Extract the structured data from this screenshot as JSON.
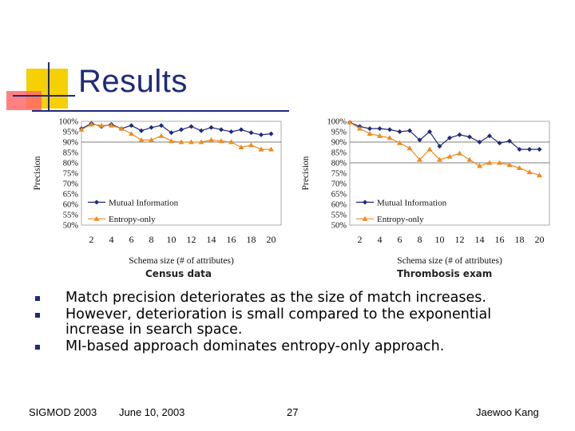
{
  "slide": {
    "title": "Results",
    "bullets": [
      "Match precision deteriorates as the size of match increases.",
      "However, deterioration is small compared to the exponential increase in search space.",
      "MI-based approach dominates entropy-only approach."
    ],
    "footer": {
      "left": "SIGMOD 2003",
      "date": "June 10, 2003",
      "page": "27",
      "author": "Jaewoo Kang"
    }
  },
  "colors": {
    "title": "#1f2a7a",
    "mutual": "#1f2a7a",
    "entropy": "#f08a1c",
    "deco_yellow": "#f6d000",
    "deco_red": "#e84040"
  },
  "chart_data": [
    {
      "type": "line",
      "caption": "Census data",
      "xlabel": "Schema size (# of attributes)",
      "ylabel": "Precision",
      "x_ticks": [
        2,
        4,
        6,
        8,
        10,
        12,
        14,
        16,
        18,
        20
      ],
      "y_ticks": [
        "100%",
        "95%",
        "90%",
        "85%",
        "80%",
        "75%",
        "70%",
        "65%",
        "60%",
        "55%",
        "50%"
      ],
      "xlim": [
        1,
        21
      ],
      "ylim": [
        50,
        100
      ],
      "legend_position": "bottom-left",
      "x": [
        1,
        2,
        3,
        4,
        5,
        6,
        7,
        8,
        9,
        10,
        11,
        12,
        13,
        14,
        15,
        16,
        17,
        18,
        19,
        20
      ],
      "series": [
        {
          "name": "Mutual Information",
          "marker": "diamond",
          "values": [
            96.5,
            99,
            97.5,
            98.5,
            96.5,
            98,
            95.5,
            97,
            98,
            94.5,
            96,
            97.5,
            95.5,
            97,
            96,
            95,
            96,
            94.5,
            93.5,
            94
          ]
        },
        {
          "name": "Entropy-only",
          "marker": "triangle",
          "values": [
            96,
            98.5,
            98,
            98,
            96.5,
            94,
            91,
            91,
            93,
            90.5,
            90,
            90,
            90,
            91,
            90.5,
            90,
            87.5,
            88.5,
            86.5,
            86.5
          ]
        }
      ]
    },
    {
      "type": "line",
      "caption": "Thrombosis exam",
      "xlabel": "Schema size (# of attributes)",
      "ylabel": "Precision",
      "x_ticks": [
        2,
        4,
        6,
        8,
        10,
        12,
        14,
        16,
        18,
        20
      ],
      "y_ticks": [
        "100%",
        "95%",
        "90%",
        "85%",
        "80%",
        "75%",
        "70%",
        "65%",
        "60%",
        "55%",
        "50%"
      ],
      "xlim": [
        1,
        21
      ],
      "ylim": [
        50,
        100
      ],
      "legend_position": "bottom-left",
      "x": [
        1,
        2,
        3,
        4,
        5,
        6,
        7,
        8,
        9,
        10,
        11,
        12,
        13,
        14,
        15,
        16,
        17,
        18,
        19,
        20
      ],
      "series": [
        {
          "name": "Mutual Information",
          "marker": "diamond",
          "values": [
            99.5,
            97.5,
            96.5,
            96.5,
            96,
            95,
            95.5,
            91,
            95,
            88,
            92,
            93.5,
            92.5,
            90,
            93,
            89.5,
            90.5,
            86.5,
            86.5,
            86.5
          ]
        },
        {
          "name": "Entropy-only",
          "marker": "triangle",
          "values": [
            99.5,
            96.5,
            94,
            93,
            92,
            89.5,
            87,
            81.5,
            86.5,
            81.5,
            83,
            84.5,
            81.5,
            78.5,
            80,
            80,
            79,
            77.5,
            75.5,
            74
          ]
        }
      ]
    }
  ]
}
